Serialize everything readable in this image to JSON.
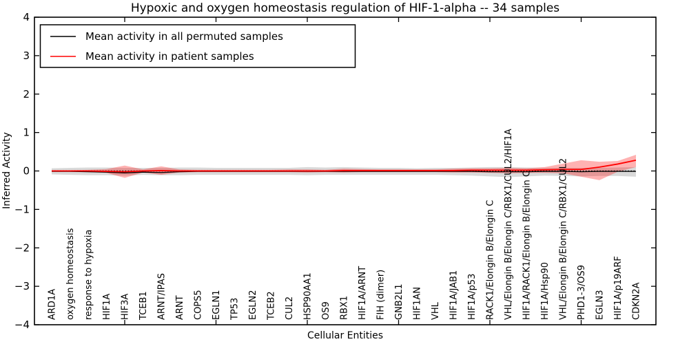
{
  "chart_data": {
    "type": "line",
    "title": "Hypoxic and oxygen homeostasis regulation of HIF-1-alpha -- 34 samples",
    "xlabel": "Cellular Entities",
    "ylabel": "Inferred Activity",
    "ylim": [
      -4,
      4
    ],
    "ytick_step": 1,
    "grid": false,
    "legend_position": "upper left",
    "categories": [
      "ARD1A",
      "oxygen homeostasis",
      "response to hypoxia",
      "HIF1A",
      "HIF3A",
      "TCEB1",
      "ARNT/IPAS",
      "ARNT",
      "COPS5",
      "EGLN1",
      "TP53",
      "EGLN2",
      "TCEB2",
      "CUL2",
      "HSP90AA1",
      "OS9",
      "RBX1",
      "HIF1A/ARNT",
      "FIH (dimer)",
      "GNB2L1",
      "HIF1AN",
      "VHL",
      "HIF1A/JAB1",
      "HIF1A/p53",
      "RACK1/Elongin B/Elongin C",
      "VHL/Elongin B/Elongin C/RBX1/CUL2/HIF1A",
      "HIF1A/RACK1/Elongin B/Elongin C",
      "HIF1A/Hsp90",
      "VHL/Elongin B/Elongin C/RBX1/CUL2",
      "PHD1-3/OS9",
      "EGLN3",
      "HIF1A/p19ARF",
      "CDKN2A"
    ],
    "x_frame_tick_indices": [
      4,
      9,
      14,
      19,
      24,
      29
    ],
    "zero_line": {
      "y": 0,
      "style": "dotted",
      "color": "#000000"
    },
    "series": [
      {
        "name": "Mean activity in all permuted samples",
        "color": "#000000",
        "band_color": "#808080",
        "band_opacity": 0.3,
        "values": [
          -0.01,
          -0.01,
          -0.02,
          -0.03,
          -0.05,
          -0.03,
          -0.04,
          -0.02,
          -0.01,
          -0.01,
          -0.01,
          -0.01,
          -0.01,
          -0.01,
          -0.01,
          -0.01,
          -0.01,
          -0.01,
          -0.01,
          -0.01,
          -0.01,
          -0.01,
          -0.01,
          -0.01,
          -0.02,
          -0.02,
          -0.02,
          -0.01,
          -0.01,
          -0.02,
          -0.01,
          -0.01,
          -0.01
        ],
        "band_upper": [
          0.07,
          0.08,
          0.09,
          0.09,
          0.08,
          0.08,
          0.08,
          0.09,
          0.09,
          0.08,
          0.08,
          0.08,
          0.08,
          0.08,
          0.1,
          0.09,
          0.1,
          0.09,
          0.08,
          0.08,
          0.07,
          0.08,
          0.08,
          0.09,
          0.1,
          0.1,
          0.09,
          0.08,
          0.08,
          0.08,
          0.08,
          0.09,
          0.1
        ],
        "band_lower": [
          -0.09,
          -0.1,
          -0.11,
          -0.11,
          -0.12,
          -0.1,
          -0.11,
          -0.11,
          -0.1,
          -0.1,
          -0.1,
          -0.1,
          -0.1,
          -0.1,
          -0.11,
          -0.1,
          -0.1,
          -0.1,
          -0.1,
          -0.1,
          -0.1,
          -0.1,
          -0.11,
          -0.12,
          -0.14,
          -0.16,
          -0.14,
          -0.12,
          -0.13,
          -0.14,
          -0.13,
          -0.13,
          -0.15
        ]
      },
      {
        "name": "Mean activity in patient samples",
        "color": "#ff0000",
        "band_color": "#ff0000",
        "band_opacity": 0.3,
        "values": [
          0,
          0,
          0,
          -0.01,
          -0.02,
          0,
          0.01,
          0,
          0,
          0,
          0,
          0,
          0,
          0,
          0,
          0,
          0.01,
          0.01,
          0.01,
          0.01,
          0.01,
          0.01,
          0.01,
          0.02,
          0.02,
          0.02,
          0.02,
          0.03,
          0.04,
          0.04,
          0.1,
          0.18,
          0.28
        ],
        "band_upper": [
          0.02,
          0.02,
          0.03,
          0.05,
          0.14,
          0.04,
          0.12,
          0.04,
          0.03,
          0.03,
          0.03,
          0.03,
          0.03,
          0.04,
          0.04,
          0.03,
          0.06,
          0.05,
          0.04,
          0.04,
          0.04,
          0.04,
          0.06,
          0.07,
          0.07,
          0.08,
          0.07,
          0.1,
          0.19,
          0.28,
          0.24,
          0.26,
          0.42
        ],
        "band_lower": [
          -0.02,
          -0.02,
          -0.03,
          -0.05,
          -0.18,
          -0.04,
          -0.1,
          -0.04,
          -0.03,
          -0.03,
          -0.03,
          -0.03,
          -0.03,
          -0.03,
          -0.04,
          -0.03,
          -0.04,
          -0.03,
          -0.03,
          -0.03,
          -0.03,
          -0.03,
          -0.04,
          -0.04,
          -0.05,
          -0.06,
          -0.05,
          -0.05,
          -0.06,
          -0.15,
          -0.24,
          -0.02,
          0.1
        ]
      }
    ]
  }
}
